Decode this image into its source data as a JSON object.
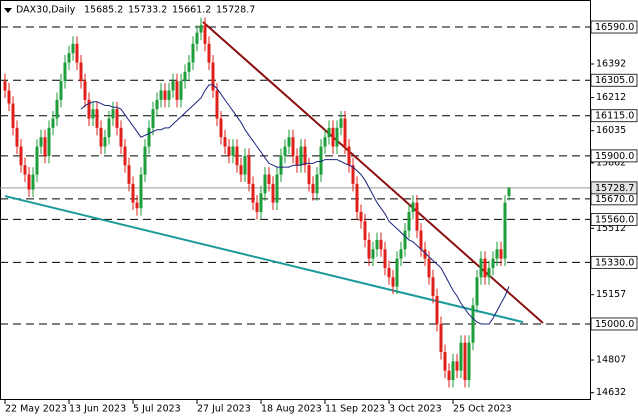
{
  "chart_data": {
    "type": "candlestick",
    "title": "DAX30,Daily",
    "header_values": [
      15685.2,
      15733.2,
      15661.2,
      15728.7
    ],
    "categories": [
      "22 May 2023",
      null,
      null,
      null,
      null,
      null,
      null,
      null,
      null,
      null,
      null,
      null,
      null,
      null,
      null,
      null,
      "13 Jun 2023",
      null,
      null,
      null,
      null,
      null,
      null,
      null,
      null,
      null,
      null,
      null,
      null,
      null,
      null,
      null,
      "5 Jul 2023",
      null,
      null,
      null,
      null,
      null,
      null,
      null,
      null,
      null,
      null,
      null,
      null,
      null,
      null,
      null,
      "27 Jul 2023",
      null,
      null,
      null,
      null,
      null,
      null,
      null,
      null,
      null,
      null,
      null,
      null,
      null,
      null,
      null,
      "18 Aug 2023",
      null,
      null,
      null,
      null,
      null,
      null,
      null,
      null,
      null,
      null,
      null,
      null,
      null,
      null,
      null,
      "11 Sep 2023",
      null,
      null,
      null,
      null,
      null,
      null,
      null,
      null,
      null,
      null,
      null,
      null,
      null,
      null,
      null,
      "3 Oct 2023",
      null,
      null,
      null,
      null,
      null,
      null,
      null,
      null,
      null,
      null,
      null,
      null,
      null,
      null,
      null,
      "25 Oct 2023",
      null,
      null,
      null,
      null,
      null,
      null,
      null,
      null,
      null,
      null,
      null,
      null,
      null,
      null
    ],
    "open": [
      16300,
      16250,
      16180,
      16050,
      15950,
      15850,
      15800,
      15720,
      15800,
      15950,
      16000,
      15900,
      16050,
      16100,
      16200,
      16300,
      16400,
      16450,
      16500,
      16400,
      16300,
      16200,
      16100,
      16150,
      16050,
      15950,
      16000,
      16100,
      16150,
      16050,
      15950,
      15850,
      15750,
      15650,
      15620,
      15800,
      15950,
      16050,
      16150,
      16200,
      16250,
      16200,
      16250,
      16300,
      16200,
      16300,
      16350,
      16400,
      16500,
      16560,
      16600,
      16500,
      16400,
      16250,
      16100,
      16000,
      15950,
      15900,
      15950,
      15850,
      15800,
      15900,
      15750,
      15650,
      15600,
      15700,
      15800,
      15750,
      15650,
      15800,
      15900,
      15950,
      16000,
      15900,
      15850,
      15950,
      15850,
      15750,
      15700,
      15800,
      15950,
      16000,
      16050,
      15950,
      16050,
      16100,
      15950,
      15850,
      15750,
      15600,
      15550,
      15450,
      15350,
      15400,
      15450,
      15400,
      15300,
      15250,
      15200,
      15350,
      15400,
      15500,
      15600,
      15650,
      15500,
      15400,
      15350,
      15250,
      15150,
      15000,
      14850,
      14750,
      14700,
      14800,
      14750,
      14900,
      14700,
      14900,
      15100,
      15250,
      15350,
      15250,
      15300,
      15350,
      15400,
      15350,
      15685.2
    ],
    "high": [
      16340,
      16290,
      16220,
      16090,
      15990,
      15890,
      15840,
      15840,
      15990,
      16040,
      16040,
      16090,
      16140,
      16240,
      16340,
      16440,
      16490,
      16540,
      16540,
      16440,
      16340,
      16240,
      16190,
      16190,
      16090,
      16040,
      16140,
      16190,
      16190,
      16090,
      15990,
      15890,
      15790,
      15690,
      15840,
      15990,
      16090,
      16190,
      16240,
      16290,
      16290,
      16290,
      16340,
      16340,
      16340,
      16390,
      16440,
      16540,
      16600,
      16640,
      16640,
      16540,
      16440,
      16290,
      16140,
      16040,
      15990,
      15990,
      15990,
      15890,
      15940,
      15940,
      15790,
      15690,
      15740,
      15840,
      15840,
      15790,
      15840,
      15940,
      15990,
      16040,
      16040,
      15940,
      15990,
      15990,
      15890,
      15790,
      15840,
      15990,
      16040,
      16090,
      16090,
      16090,
      16140,
      16140,
      15990,
      15890,
      15790,
      15640,
      15590,
      15490,
      15440,
      15490,
      15490,
      15440,
      15340,
      15290,
      15390,
      15440,
      15540,
      15640,
      15690,
      15690,
      15540,
      15440,
      15390,
      15290,
      15190,
      15040,
      14890,
      14790,
      14840,
      14840,
      14940,
      14940,
      14940,
      15140,
      15290,
      15390,
      15390,
      15340,
      15390,
      15440,
      15440,
      15690,
      15733.2
    ],
    "low": [
      16210,
      16140,
      16010,
      15910,
      15810,
      15760,
      15680,
      15680,
      15760,
      15910,
      15860,
      15860,
      16010,
      16060,
      16160,
      16260,
      16360,
      16410,
      16360,
      16260,
      16160,
      16060,
      16060,
      16010,
      15910,
      15910,
      15960,
      16060,
      16010,
      15910,
      15810,
      15710,
      15610,
      15580,
      15580,
      15760,
      15910,
      16010,
      16110,
      16160,
      16160,
      16160,
      16210,
      16160,
      16160,
      16260,
      16310,
      16360,
      16460,
      16520,
      16460,
      16360,
      16210,
      16060,
      15960,
      15910,
      15860,
      15860,
      15810,
      15760,
      15760,
      15710,
      15610,
      15560,
      15560,
      15660,
      15710,
      15610,
      15610,
      15760,
      15860,
      15910,
      15860,
      15810,
      15810,
      15810,
      15710,
      15660,
      15660,
      15760,
      15910,
      15960,
      15910,
      15910,
      16010,
      15910,
      15810,
      15710,
      15560,
      15510,
      15410,
      15310,
      15310,
      15360,
      15360,
      15260,
      15210,
      15160,
      15160,
      15310,
      15360,
      15460,
      15560,
      15460,
      15360,
      15310,
      15210,
      15110,
      14960,
      14810,
      14710,
      14660,
      14660,
      14710,
      14710,
      14660,
      14660,
      14860,
      15060,
      15210,
      15210,
      15210,
      15260,
      15310,
      15310,
      15310,
      15661.2
    ],
    "close": [
      16250,
      16180,
      16050,
      15950,
      15850,
      15800,
      15720,
      15800,
      15950,
      16000,
      15900,
      16050,
      16100,
      16200,
      16300,
      16400,
      16450,
      16500,
      16400,
      16300,
      16200,
      16100,
      16150,
      16050,
      15950,
      16000,
      16100,
      16150,
      16050,
      15950,
      15850,
      15750,
      15650,
      15620,
      15800,
      15950,
      16050,
      16150,
      16200,
      16250,
      16200,
      16250,
      16300,
      16200,
      16300,
      16350,
      16400,
      16500,
      16560,
      16600,
      16500,
      16400,
      16250,
      16100,
      16000,
      15950,
      15900,
      15950,
      15850,
      15800,
      15900,
      15750,
      15650,
      15600,
      15700,
      15800,
      15750,
      15650,
      15800,
      15900,
      15950,
      16000,
      15900,
      15850,
      15950,
      15850,
      15750,
      15700,
      15800,
      15950,
      16000,
      16050,
      15950,
      16050,
      16100,
      15950,
      15850,
      15750,
      15600,
      15550,
      15450,
      15350,
      15400,
      15450,
      15400,
      15300,
      15250,
      15200,
      15350,
      15400,
      15500,
      15600,
      15650,
      15500,
      15400,
      15350,
      15250,
      15150,
      15000,
      14850,
      14750,
      14700,
      14800,
      14750,
      14900,
      14700,
      14900,
      15100,
      15250,
      15350,
      15250,
      15300,
      15350,
      15400,
      15350,
      15650,
      15728.7
    ],
    "up_color": "#1e9e3a",
    "down_color": "#e0201a",
    "ma": {
      "color": "#1a237e",
      "values": [
        null,
        null,
        null,
        null,
        null,
        null,
        null,
        null,
        null,
        null,
        null,
        null,
        null,
        null,
        null,
        null,
        null,
        null,
        null,
        16150,
        16170,
        16180,
        16190,
        16190,
        16180,
        16170,
        16170,
        16160,
        16160,
        16150,
        16120,
        16090,
        16060,
        16030,
        16000,
        16010,
        16020,
        16030,
        16040,
        16040,
        16050,
        16050,
        16070,
        16090,
        16110,
        16130,
        16150,
        16170,
        16190,
        16210,
        16250,
        16280,
        16280,
        16260,
        16230,
        16200,
        16170,
        16140,
        16110,
        16080,
        16040,
        16010,
        15980,
        15950,
        15920,
        15890,
        15860,
        15850,
        15840,
        15840,
        15840,
        15840,
        15850,
        15850,
        15850,
        15860,
        15860,
        15860,
        15870,
        15870,
        15880,
        15880,
        15880,
        15880,
        15870,
        15860,
        15850,
        15840,
        15820,
        15800,
        15770,
        15730,
        15690,
        15650,
        15620,
        15590,
        15550,
        15530,
        15510,
        15490,
        15470,
        15450,
        15440,
        15420,
        15400,
        15380,
        15360,
        15340,
        15320,
        15300,
        15260,
        15220,
        15180,
        15150,
        15110,
        15080,
        15050,
        15030,
        15010,
        15000,
        15000,
        15000,
        15030,
        15070,
        15110,
        15150,
        15200
      ]
    },
    "trendlines": [
      {
        "color": "#8b0f0f",
        "x": [
          49.5,
          134.5
        ],
        "y": [
          16617,
          15005
        ]
      },
      {
        "color": "#1a9a9a",
        "x": [
          0,
          129.5
        ],
        "y": [
          15685,
          15010
        ]
      }
    ],
    "levels": [
      {
        "value": 16590,
        "label": "16590.0"
      },
      {
        "value": 16305,
        "label": "16305.0"
      },
      {
        "value": 16115,
        "label": "16115.0"
      },
      {
        "value": 15900,
        "label": "15900.0"
      },
      {
        "value": 15670,
        "label": "15670.0"
      },
      {
        "value": 15560,
        "label": "15560.0"
      },
      {
        "value": 15330,
        "label": "15330.0"
      },
      {
        "value": 15000,
        "label": "15000.0"
      }
    ],
    "current_price": 15728.7,
    "xlim": [
      -1.25,
      146.25
    ],
    "ylim": [
      14593,
      16734.6
    ],
    "yticks": [
      16392,
      16212,
      16035,
      15862,
      15512,
      15157,
      14807,
      14632
    ]
  }
}
